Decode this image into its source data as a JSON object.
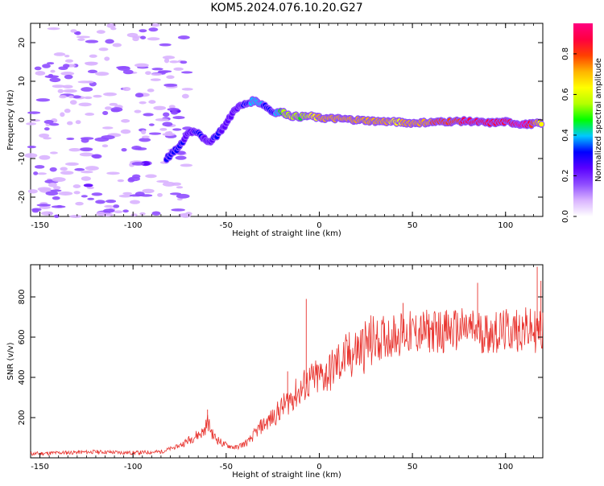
{
  "title": "KOM5.2024.076.10.20.G27",
  "chart_data": [
    {
      "type": "heatmap",
      "xlabel": "Height of straight line (km)",
      "ylabel": "Frequency (Hz)",
      "xlim": [
        -155,
        120
      ],
      "ylim": [
        -25,
        25
      ],
      "x_ticks": [
        -150,
        -100,
        -50,
        0,
        50,
        100
      ],
      "y_ticks": [
        -20,
        -10,
        0,
        10,
        20
      ],
      "colorbar": {
        "label": "Normalized spectral amplitude",
        "range": [
          0,
          0.95
        ],
        "ticks": [
          0.0,
          0.2,
          0.4,
          0.6,
          0.8
        ],
        "colors": [
          "#ffffff",
          "#d9b3ff",
          "#8f4dff",
          "#5a00ff",
          "#0000ff",
          "#00c8ff",
          "#00ff00",
          "#b4ff00",
          "#ffff00",
          "#ffb400",
          "#ff4000",
          "#ff0040",
          "#ff0080"
        ]
      },
      "ridge": {
        "x": [
          -82,
          -75,
          -70,
          -65,
          -60,
          -55,
          -50,
          -45,
          -40,
          -35,
          -30,
          -25,
          -20,
          -15,
          -10,
          -5,
          0,
          10,
          20,
          30,
          40,
          50,
          60,
          70,
          80,
          90,
          100,
          110,
          120
        ],
        "y": [
          -10,
          -7,
          -3,
          -3,
          -6,
          -4,
          -1,
          3,
          4,
          5,
          4,
          2,
          2,
          1,
          0.8,
          1,
          0.5,
          0.3,
          0,
          -0.3,
          -0.5,
          -0.8,
          -0.6,
          -0.4,
          -0.3,
          -0.8,
          -0.5,
          -1.2,
          -0.8
        ],
        "amplitude": [
          0.35,
          0.3,
          0.25,
          0.3,
          0.25,
          0.3,
          0.25,
          0.2,
          0.3,
          0.4,
          0.35,
          0.3,
          0.5,
          0.6,
          0.5,
          0.6,
          0.7,
          0.75,
          0.7,
          0.75,
          0.65,
          0.7,
          0.75,
          0.8,
          0.85,
          0.9,
          0.85,
          0.95,
          0.6
        ]
      }
    },
    {
      "type": "line",
      "xlabel": "Height of straight line (km)",
      "ylabel": "SNR (v/v)",
      "xlim": [
        -155,
        120
      ],
      "ylim": [
        0,
        960
      ],
      "x_ticks": [
        -150,
        -100,
        -50,
        0,
        50,
        100
      ],
      "y_ticks": [
        200,
        400,
        600,
        800
      ],
      "line_color": "#e8332e",
      "x": [
        -155,
        -140,
        -120,
        -100,
        -85,
        -75,
        -68,
        -62,
        -60,
        -57,
        -52,
        -45,
        -38,
        -32,
        -25,
        -20,
        -15,
        -12,
        -9,
        -8,
        -5,
        0,
        5,
        10,
        15,
        20,
        25,
        30,
        35,
        40,
        45,
        50,
        60,
        70,
        80,
        90,
        100,
        110,
        115,
        120
      ],
      "y": [
        20,
        25,
        30,
        25,
        30,
        60,
        100,
        130,
        180,
        110,
        70,
        50,
        80,
        150,
        200,
        250,
        300,
        320,
        340,
        360,
        380,
        400,
        420,
        470,
        500,
        530,
        560,
        580,
        600,
        610,
        620,
        620,
        630,
        630,
        640,
        620,
        630,
        640,
        630,
        630
      ],
      "spikes": [
        {
          "x": -60,
          "y": 240
        },
        {
          "x": -17,
          "y": 430
        },
        {
          "x": -7,
          "y": 790
        },
        {
          "x": 45,
          "y": 770
        },
        {
          "x": 85,
          "y": 870
        },
        {
          "x": 117,
          "y": 950
        },
        {
          "x": 119,
          "y": 880
        }
      ]
    }
  ]
}
